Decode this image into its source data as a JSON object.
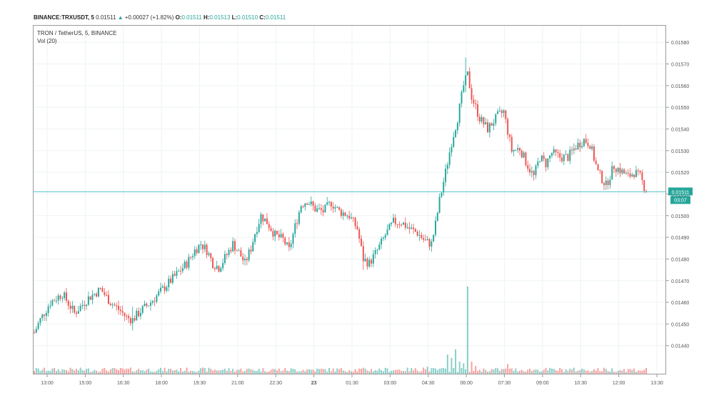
{
  "header": {
    "symbol": "BINANCE:TRXUSDT, 5",
    "last": "0.01511",
    "change_arrow": "▲",
    "change": "+0.00027 (+1.82%)",
    "o_label": "O:",
    "o_value": "0.01511",
    "h_label": "H:",
    "h_value": "0.01513",
    "l_label": "L:",
    "l_value": "0.01510",
    "c_label": "C:",
    "c_value": "0.01511"
  },
  "legend": {
    "title": "TRON / TetherUS, 5, BINANCE",
    "volume": "Vol (20)"
  },
  "price_tag": {
    "value": "0.01511",
    "countdown": "03:07"
  },
  "colors": {
    "up": "#26a69a",
    "down": "#ef5350",
    "grid": "#eef3f5",
    "line": "#4fc3c8",
    "tag": "#26a69a"
  },
  "chart_data": {
    "type": "candlestick",
    "title": "TRON / TetherUS, 5, BINANCE",
    "symbol": "BINANCE:TRXUSDT",
    "interval": "5",
    "ylim": [
      0.01432,
      0.01586
    ],
    "yticks": [
      "0.01580",
      "0.01570",
      "0.01560",
      "0.01550",
      "0.01540",
      "0.01530",
      "0.01520",
      "0.01510",
      "0.01500",
      "0.01490",
      "0.01480",
      "0.01470",
      "0.01460",
      "0.01450",
      "0.01440"
    ],
    "xticks": [
      "13:00",
      "15:00",
      "16:30",
      "18:00",
      "19:30",
      "21:00",
      "22:30",
      "23",
      "01:30",
      "03:00",
      "04:30",
      "06:00",
      "07:30",
      "09:00",
      "10:30",
      "12:00",
      "13:30"
    ],
    "current_price": 0.01511,
    "anchors": [
      [
        0,
        0.01446
      ],
      [
        3,
        0.01452
      ],
      [
        8,
        0.0146
      ],
      [
        14,
        0.01464
      ],
      [
        20,
        0.01455
      ],
      [
        27,
        0.01462
      ],
      [
        33,
        0.01466
      ],
      [
        38,
        0.0146
      ],
      [
        43,
        0.01456
      ],
      [
        46,
        0.01453
      ],
      [
        49,
        0.01452
      ],
      [
        53,
        0.01456
      ],
      [
        58,
        0.0146
      ],
      [
        64,
        0.01466
      ],
      [
        70,
        0.01472
      ],
      [
        76,
        0.01478
      ],
      [
        80,
        0.01484
      ],
      [
        83,
        0.01487
      ],
      [
        86,
        0.01484
      ],
      [
        89,
        0.01478
      ],
      [
        92,
        0.01476
      ],
      [
        96,
        0.01482
      ],
      [
        99,
        0.01487
      ],
      [
        102,
        0.01483
      ],
      [
        105,
        0.01478
      ],
      [
        108,
        0.01485
      ],
      [
        110,
        0.01492
      ],
      [
        113,
        0.015
      ],
      [
        116,
        0.01497
      ],
      [
        120,
        0.01491
      ],
      [
        124,
        0.01489
      ],
      [
        127,
        0.01484
      ],
      [
        130,
        0.01495
      ],
      [
        133,
        0.01505
      ],
      [
        136,
        0.01507
      ],
      [
        140,
        0.01503
      ],
      [
        144,
        0.01502
      ],
      [
        148,
        0.01506
      ],
      [
        152,
        0.01502
      ],
      [
        157,
        0.015
      ],
      [
        161,
        0.01494
      ],
      [
        164,
        0.0148
      ],
      [
        167,
        0.01478
      ],
      [
        171,
        0.01484
      ],
      [
        175,
        0.01491
      ],
      [
        179,
        0.01497
      ],
      [
        183,
        0.01497
      ],
      [
        187,
        0.01494
      ],
      [
        191,
        0.01492
      ],
      [
        195,
        0.01488
      ],
      [
        198,
        0.01487
      ],
      [
        200,
        0.01496
      ],
      [
        202,
        0.01507
      ],
      [
        205,
        0.0152
      ],
      [
        208,
        0.01534
      ],
      [
        211,
        0.01545
      ],
      [
        214,
        0.0156
      ],
      [
        216,
        0.01565
      ],
      [
        218,
        0.01555
      ],
      [
        222,
        0.01545
      ],
      [
        226,
        0.0154
      ],
      [
        231,
        0.01546
      ],
      [
        234,
        0.01548
      ],
      [
        238,
        0.0153
      ],
      [
        242,
        0.01531
      ],
      [
        246,
        0.01523
      ],
      [
        249,
        0.01518
      ],
      [
        252,
        0.01527
      ],
      [
        255,
        0.01524
      ],
      [
        258,
        0.01529
      ],
      [
        262,
        0.01527
      ],
      [
        266,
        0.01527
      ],
      [
        270,
        0.01532
      ],
      [
        274,
        0.01535
      ],
      [
        277,
        0.01533
      ],
      [
        281,
        0.0152
      ],
      [
        285,
        0.01514
      ],
      [
        289,
        0.01523
      ],
      [
        292,
        0.01521
      ],
      [
        296,
        0.01518
      ],
      [
        299,
        0.0152
      ],
      [
        302,
        0.01518
      ],
      [
        305,
        0.01511
      ]
    ],
    "spikes": [
      {
        "bar": 164,
        "high": 0.01483,
        "low": 0.01475
      },
      {
        "bar": 215,
        "high": 0.01573,
        "low": 0.01557
      },
      {
        "bar": 49,
        "high": 0.01458,
        "low": 0.01447
      }
    ],
    "volume_big": [
      {
        "bar": 194,
        "value": 7
      },
      {
        "bar": 196,
        "value": 8
      },
      {
        "bar": 206,
        "value": 22
      },
      {
        "bar": 208,
        "value": 18
      },
      {
        "bar": 210,
        "value": 28
      },
      {
        "bar": 212,
        "value": 14
      },
      {
        "bar": 214,
        "value": 12
      },
      {
        "bar": 216,
        "value": 100
      },
      {
        "bar": 218,
        "value": 14
      },
      {
        "bar": 220,
        "value": 9
      },
      {
        "bar": 236,
        "value": 11
      }
    ]
  }
}
